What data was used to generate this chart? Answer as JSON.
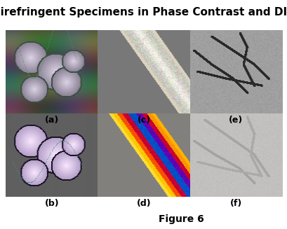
{
  "title": "Birefringent Specimens in Phase Contrast and DIC",
  "title_fontsize": 11,
  "title_fontweight": "bold",
  "figure_caption": "Figure 6",
  "caption_fontsize": 10,
  "caption_fontweight": "bold",
  "panel_labels": [
    "(a)",
    "(c)",
    "(e)",
    "(b)",
    "(d)",
    "(f)"
  ],
  "label_fontsize": 9,
  "label_fontweight": "bold",
  "bg_color": "#ffffff",
  "fig_width": 4.1,
  "fig_height": 3.27,
  "dpi": 100
}
